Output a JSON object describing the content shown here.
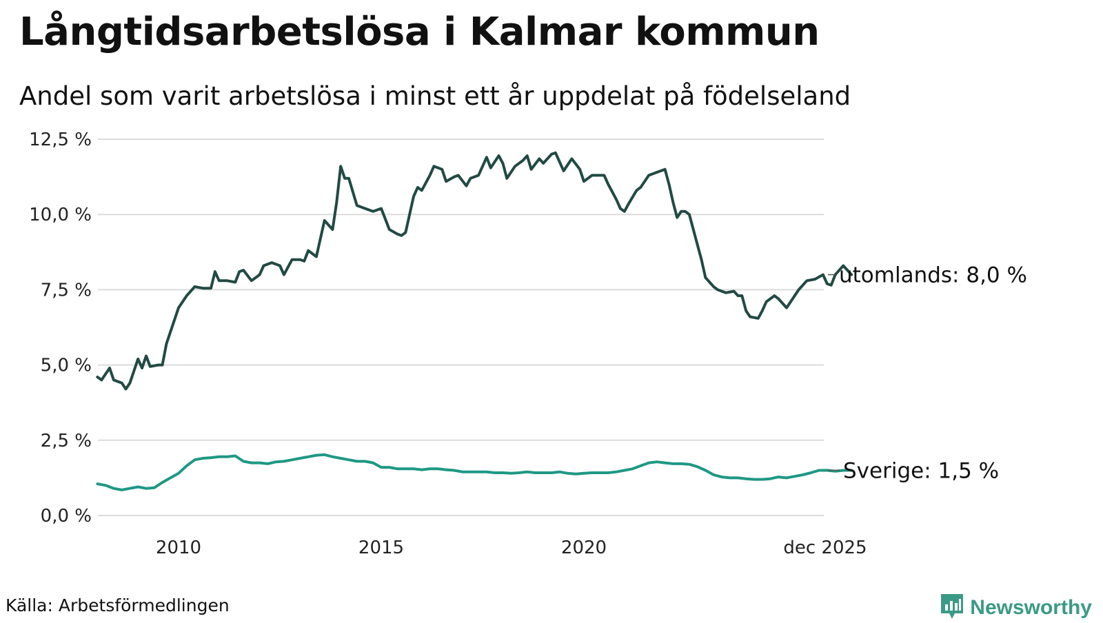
{
  "title": "Långtidsarbetslösa i Kalmar kommun",
  "subtitle": "Andel som varit arbetslösa i minst ett år uppdelat på födelseland",
  "source": "Källa: Arbetsförmedlingen",
  "brand": {
    "name": "Newsworthy",
    "icon": "newsworthy-logo-icon",
    "color": "#3a9a86"
  },
  "chart_data": {
    "type": "line",
    "title": "Långtidsarbetslösa i Kalmar kommun",
    "subtitle": "Andel som varit arbetslösa i minst ett år uppdelat på födelseland",
    "xlabel": "",
    "ylabel": "",
    "ylim": [
      0,
      12.5
    ],
    "y_ticks": [
      0,
      2.5,
      5,
      7.5,
      10,
      12.5
    ],
    "y_tick_labels": [
      "0,0 %",
      "2,5 %",
      "5,0 %",
      "7,5 %",
      "10,0 %",
      "12,5 %"
    ],
    "x_range": [
      2008.0,
      2025.917
    ],
    "x_ticks": [
      2010,
      2015,
      2020,
      2025.917
    ],
    "x_tick_labels": [
      "2010",
      "2015",
      "2020",
      "dec 2025"
    ],
    "grid": true,
    "series": [
      {
        "name": "utomlands",
        "label": "utomlands: 8,0 %",
        "color": "#214a43",
        "points": [
          [
            2008.0,
            4.6
          ],
          [
            2008.1,
            4.5
          ],
          [
            2008.3,
            4.9
          ],
          [
            2008.4,
            4.5
          ],
          [
            2008.6,
            4.4
          ],
          [
            2008.7,
            4.2
          ],
          [
            2008.8,
            4.4
          ],
          [
            2009.0,
            5.2
          ],
          [
            2009.1,
            4.9
          ],
          [
            2009.2,
            5.3
          ],
          [
            2009.3,
            4.95
          ],
          [
            2009.5,
            5.0
          ],
          [
            2009.6,
            5.0
          ],
          [
            2009.7,
            5.7
          ],
          [
            2009.8,
            6.1
          ],
          [
            2010.0,
            6.9
          ],
          [
            2010.2,
            7.3
          ],
          [
            2010.4,
            7.6
          ],
          [
            2010.6,
            7.55
          ],
          [
            2010.8,
            7.55
          ],
          [
            2010.9,
            8.1
          ],
          [
            2011.0,
            7.8
          ],
          [
            2011.2,
            7.8
          ],
          [
            2011.4,
            7.75
          ],
          [
            2011.5,
            8.1
          ],
          [
            2011.6,
            8.15
          ],
          [
            2011.8,
            7.8
          ],
          [
            2012.0,
            8.0
          ],
          [
            2012.1,
            8.3
          ],
          [
            2012.3,
            8.4
          ],
          [
            2012.5,
            8.3
          ],
          [
            2012.6,
            8.0
          ],
          [
            2012.8,
            8.5
          ],
          [
            2013.0,
            8.5
          ],
          [
            2013.1,
            8.45
          ],
          [
            2013.2,
            8.8
          ],
          [
            2013.4,
            8.6
          ],
          [
            2013.6,
            9.8
          ],
          [
            2013.8,
            9.5
          ],
          [
            2013.9,
            10.4
          ],
          [
            2014.0,
            11.6
          ],
          [
            2014.1,
            11.2
          ],
          [
            2014.2,
            11.2
          ],
          [
            2014.4,
            10.3
          ],
          [
            2014.6,
            10.2
          ],
          [
            2014.8,
            10.1
          ],
          [
            2015.0,
            10.2
          ],
          [
            2015.2,
            9.5
          ],
          [
            2015.4,
            9.35
          ],
          [
            2015.5,
            9.3
          ],
          [
            2015.6,
            9.4
          ],
          [
            2015.8,
            10.6
          ],
          [
            2015.9,
            10.9
          ],
          [
            2016.0,
            10.8
          ],
          [
            2016.2,
            11.3
          ],
          [
            2016.3,
            11.6
          ],
          [
            2016.5,
            11.5
          ],
          [
            2016.6,
            11.1
          ],
          [
            2016.8,
            11.25
          ],
          [
            2016.9,
            11.3
          ],
          [
            2017.1,
            10.95
          ],
          [
            2017.2,
            11.2
          ],
          [
            2017.4,
            11.3
          ],
          [
            2017.6,
            11.9
          ],
          [
            2017.7,
            11.55
          ],
          [
            2017.9,
            11.95
          ],
          [
            2018.0,
            11.7
          ],
          [
            2018.1,
            11.2
          ],
          [
            2018.3,
            11.6
          ],
          [
            2018.5,
            11.8
          ],
          [
            2018.6,
            11.95
          ],
          [
            2018.7,
            11.5
          ],
          [
            2018.9,
            11.85
          ],
          [
            2019.0,
            11.7
          ],
          [
            2019.2,
            12.0
          ],
          [
            2019.3,
            12.05
          ],
          [
            2019.5,
            11.45
          ],
          [
            2019.7,
            11.85
          ],
          [
            2019.9,
            11.5
          ],
          [
            2020.0,
            11.1
          ],
          [
            2020.2,
            11.3
          ],
          [
            2020.4,
            11.3
          ],
          [
            2020.5,
            11.3
          ],
          [
            2020.6,
            11.0
          ],
          [
            2020.8,
            10.5
          ],
          [
            2020.9,
            10.2
          ],
          [
            2021.0,
            10.1
          ],
          [
            2021.1,
            10.35
          ],
          [
            2021.3,
            10.8
          ],
          [
            2021.4,
            10.9
          ],
          [
            2021.6,
            11.3
          ],
          [
            2021.8,
            11.4
          ],
          [
            2022.0,
            11.5
          ],
          [
            2022.1,
            11.0
          ],
          [
            2022.2,
            10.4
          ],
          [
            2022.3,
            9.9
          ],
          [
            2022.4,
            10.1
          ],
          [
            2022.5,
            10.1
          ],
          [
            2022.6,
            10.0
          ],
          [
            2022.8,
            9.0
          ],
          [
            2022.9,
            8.5
          ],
          [
            2023.0,
            7.9
          ],
          [
            2023.2,
            7.6
          ],
          [
            2023.3,
            7.5
          ],
          [
            2023.5,
            7.4
          ],
          [
            2023.7,
            7.45
          ],
          [
            2023.8,
            7.3
          ],
          [
            2023.9,
            7.3
          ],
          [
            2024.0,
            6.8
          ],
          [
            2024.1,
            6.6
          ],
          [
            2024.3,
            6.55
          ],
          [
            2024.4,
            6.8
          ],
          [
            2024.5,
            7.1
          ],
          [
            2024.7,
            7.3
          ],
          [
            2024.8,
            7.2
          ],
          [
            2025.0,
            6.9
          ],
          [
            2025.1,
            7.1
          ],
          [
            2025.3,
            7.5
          ],
          [
            2025.5,
            7.8
          ],
          [
            2025.7,
            7.85
          ],
          [
            2025.9,
            8.0
          ],
          [
            2026.0,
            7.7
          ],
          [
            2026.1,
            7.65
          ],
          [
            2026.2,
            8.0
          ],
          [
            2026.4,
            8.3
          ],
          [
            2026.5,
            8.15
          ],
          [
            2026.6,
            8.0
          ]
        ]
      },
      {
        "name": "Sverige",
        "label": "Sverige: 1,5 %",
        "color": "#1e9884",
        "points": [
          [
            2008.0,
            1.05
          ],
          [
            2008.2,
            1.0
          ],
          [
            2008.4,
            0.9
          ],
          [
            2008.6,
            0.85
          ],
          [
            2008.8,
            0.9
          ],
          [
            2009.0,
            0.95
          ],
          [
            2009.2,
            0.9
          ],
          [
            2009.4,
            0.92
          ],
          [
            2009.6,
            1.1
          ],
          [
            2009.8,
            1.25
          ],
          [
            2010.0,
            1.4
          ],
          [
            2010.2,
            1.65
          ],
          [
            2010.4,
            1.85
          ],
          [
            2010.6,
            1.9
          ],
          [
            2010.8,
            1.92
          ],
          [
            2011.0,
            1.95
          ],
          [
            2011.2,
            1.95
          ],
          [
            2011.4,
            1.98
          ],
          [
            2011.6,
            1.8
          ],
          [
            2011.8,
            1.75
          ],
          [
            2012.0,
            1.75
          ],
          [
            2012.2,
            1.72
          ],
          [
            2012.4,
            1.78
          ],
          [
            2012.6,
            1.8
          ],
          [
            2012.8,
            1.85
          ],
          [
            2013.0,
            1.9
          ],
          [
            2013.2,
            1.95
          ],
          [
            2013.4,
            2.0
          ],
          [
            2013.6,
            2.02
          ],
          [
            2013.8,
            1.95
          ],
          [
            2014.0,
            1.9
          ],
          [
            2014.2,
            1.85
          ],
          [
            2014.4,
            1.8
          ],
          [
            2014.6,
            1.8
          ],
          [
            2014.8,
            1.75
          ],
          [
            2015.0,
            1.6
          ],
          [
            2015.2,
            1.6
          ],
          [
            2015.4,
            1.55
          ],
          [
            2015.6,
            1.55
          ],
          [
            2015.8,
            1.55
          ],
          [
            2016.0,
            1.52
          ],
          [
            2016.2,
            1.55
          ],
          [
            2016.4,
            1.55
          ],
          [
            2016.6,
            1.52
          ],
          [
            2016.8,
            1.5
          ],
          [
            2017.0,
            1.45
          ],
          [
            2017.2,
            1.45
          ],
          [
            2017.4,
            1.45
          ],
          [
            2017.6,
            1.45
          ],
          [
            2017.8,
            1.42
          ],
          [
            2018.0,
            1.42
          ],
          [
            2018.2,
            1.4
          ],
          [
            2018.4,
            1.42
          ],
          [
            2018.6,
            1.45
          ],
          [
            2018.8,
            1.42
          ],
          [
            2019.0,
            1.42
          ],
          [
            2019.2,
            1.42
          ],
          [
            2019.4,
            1.45
          ],
          [
            2019.6,
            1.4
          ],
          [
            2019.8,
            1.38
          ],
          [
            2020.0,
            1.4
          ],
          [
            2020.2,
            1.42
          ],
          [
            2020.4,
            1.42
          ],
          [
            2020.6,
            1.42
          ],
          [
            2020.8,
            1.45
          ],
          [
            2021.0,
            1.5
          ],
          [
            2021.2,
            1.55
          ],
          [
            2021.4,
            1.65
          ],
          [
            2021.6,
            1.75
          ],
          [
            2021.8,
            1.78
          ],
          [
            2022.0,
            1.75
          ],
          [
            2022.2,
            1.72
          ],
          [
            2022.4,
            1.72
          ],
          [
            2022.6,
            1.7
          ],
          [
            2022.8,
            1.62
          ],
          [
            2023.0,
            1.5
          ],
          [
            2023.2,
            1.35
          ],
          [
            2023.4,
            1.28
          ],
          [
            2023.6,
            1.25
          ],
          [
            2023.8,
            1.25
          ],
          [
            2024.0,
            1.22
          ],
          [
            2024.2,
            1.2
          ],
          [
            2024.4,
            1.2
          ],
          [
            2024.6,
            1.22
          ],
          [
            2024.8,
            1.28
          ],
          [
            2025.0,
            1.25
          ],
          [
            2025.2,
            1.3
          ],
          [
            2025.4,
            1.35
          ],
          [
            2025.6,
            1.42
          ],
          [
            2025.8,
            1.5
          ],
          [
            2026.0,
            1.5
          ],
          [
            2026.2,
            1.47
          ],
          [
            2026.4,
            1.5
          ],
          [
            2026.6,
            1.5
          ]
        ]
      }
    ]
  }
}
